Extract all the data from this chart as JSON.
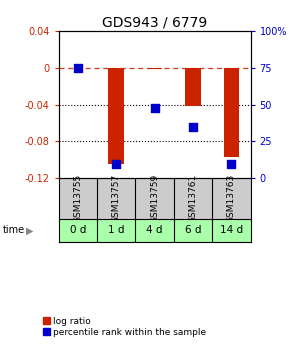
{
  "title": "GDS943 / 6779",
  "samples": [
    "GSM13755",
    "GSM13757",
    "GSM13759",
    "GSM13761",
    "GSM13763"
  ],
  "time_labels": [
    "0 d",
    "1 d",
    "4 d",
    "6 d",
    "14 d"
  ],
  "log_ratios": [
    0.0,
    -0.105,
    -0.001,
    -0.042,
    -0.097
  ],
  "percentile_ranks": [
    75,
    10,
    48,
    35,
    10
  ],
  "ylim_left": [
    -0.12,
    0.04
  ],
  "ylim_right": [
    0,
    100
  ],
  "yticks_left": [
    0.04,
    0.0,
    -0.04,
    -0.08,
    -0.12
  ],
  "yticks_right": [
    100,
    75,
    50,
    25,
    0
  ],
  "ytick_labels_left": [
    "0.04",
    "0",
    "-0.04",
    "-0.08",
    "-0.12"
  ],
  "ytick_labels_right": [
    "100%",
    "75",
    "50",
    "25",
    "0"
  ],
  "hlines_dotted": [
    -0.04,
    -0.08
  ],
  "hline_dashed": 0.0,
  "bar_color": "#cc2200",
  "dot_color": "#0000cc",
  "bar_width": 0.4,
  "dot_size": 40,
  "left_tick_color": "#cc2200",
  "right_tick_color": "#0000cc",
  "title_fontsize": 10,
  "tick_fontsize": 7,
  "sample_label_fontsize": 6.5,
  "time_label_fontsize": 7.5,
  "time_row_color": "#aaffaa",
  "sample_row_color": "#cccccc",
  "legend_bar_label": "log ratio",
  "legend_dot_label": "percentile rank within the sample"
}
